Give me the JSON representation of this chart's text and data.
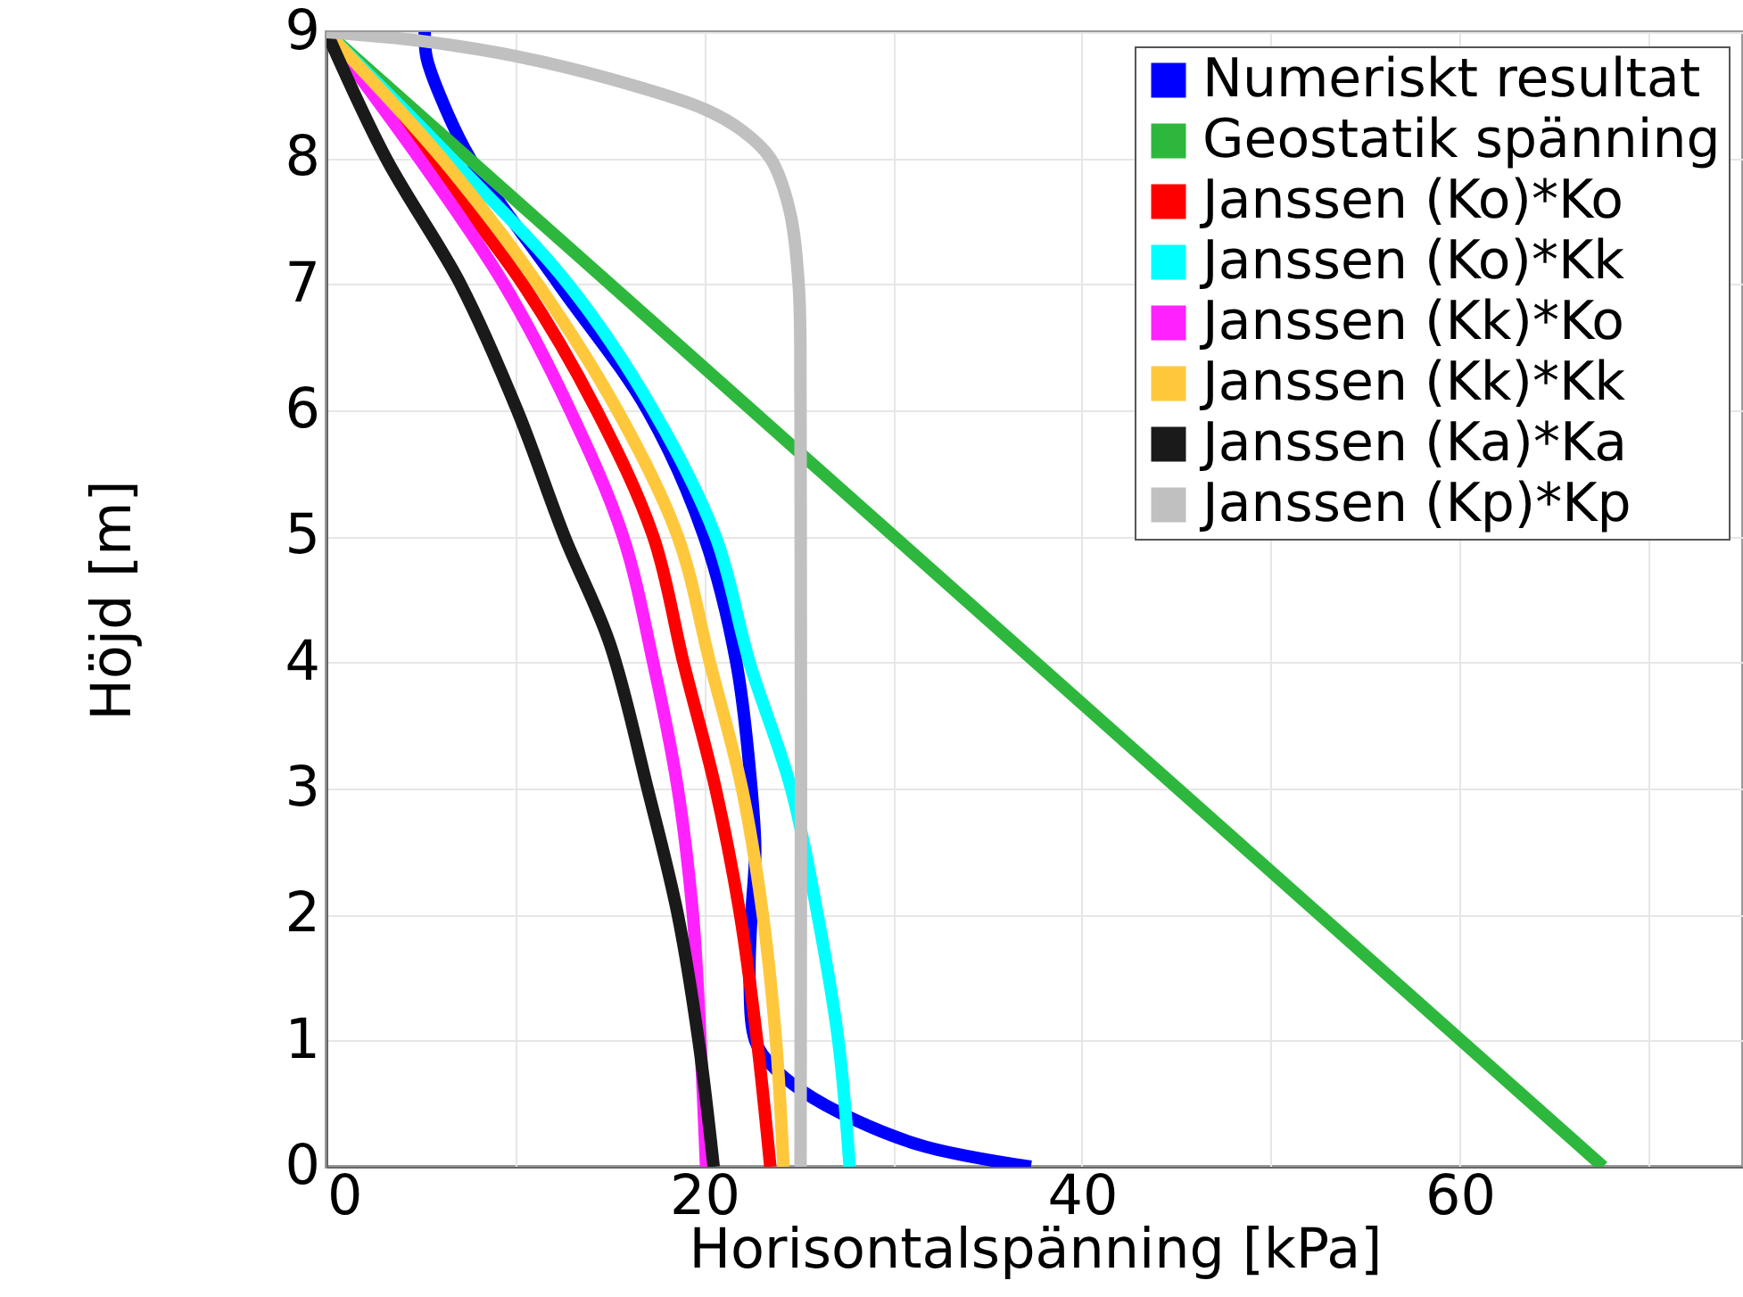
{
  "chart_data": {
    "type": "line",
    "xlabel": "Horisontalspänning [kPa]",
    "ylabel": "Höjd [m]",
    "xlim": [
      0,
      75
    ],
    "xticks": [
      0,
      {
        "value": 10,
        "label": null
      },
      20,
      {
        "value": 30,
        "label": null
      },
      40,
      {
        "value": 50,
        "label": null
      },
      60,
      {
        "value": 70,
        "label": null
      }
    ],
    "ylim": [
      0,
      9
    ],
    "yticks": [
      0,
      1,
      2,
      3,
      4,
      5,
      6,
      7,
      8,
      9
    ],
    "grid": true,
    "legend": "top right",
    "marker": "none",
    "line_style": "solid",
    "series": [
      {
        "name": "Numeriskt resultat",
        "color": "#0000ff",
        "x": [
          5.2,
          5.3,
          6.0,
          7.6,
          12.3,
          17,
          20,
          21.7,
          22.5,
          22.7,
          22.5,
          22.4,
          22.7,
          23.6,
          25.2,
          28,
          31.7,
          37.3
        ],
        "values": [
          9,
          8.8,
          8.5,
          8,
          7,
          6,
          5,
          4,
          3,
          2.5,
          2,
          1.5,
          1,
          0.8,
          0.6,
          0.37,
          0.16,
          0
        ]
      },
      {
        "name": "Geostatik spänning",
        "color": "#2db83d",
        "x": [
          0,
          67.6
        ],
        "values": [
          9,
          0
        ]
      },
      {
        "name": "Janssen (Ko)*Ko",
        "color": "#ff0000",
        "x": [
          0,
          5.35,
          10.4,
          14.3,
          17.3,
          18.9,
          20.6,
          21.9,
          22.8,
          23.5
        ],
        "values": [
          9,
          8,
          7,
          6,
          5,
          4,
          3,
          2,
          1,
          0
        ]
      },
      {
        "name": "Janssen (Ko)*Kk",
        "color": "#00ffff",
        "x": [
          0,
          6.6,
          12.8,
          17.3,
          20.6,
          22.4,
          24.6,
          26.0,
          27.1,
          27.7
        ],
        "values": [
          9,
          8,
          7,
          6,
          5,
          4,
          3,
          2,
          1,
          0
        ]
      },
      {
        "name": "Janssen (Kk)*Ko",
        "color": "#ff22ff",
        "x": [
          0,
          4.9,
          9.4,
          12.9,
          15.7,
          17.3,
          18.6,
          19.4,
          19.8,
          20.1
        ],
        "values": [
          9,
          8,
          7,
          6,
          5,
          4,
          3,
          2,
          1,
          0
        ]
      },
      {
        "name": "Janssen (Kk)*Kk",
        "color": "#ffc83c",
        "x": [
          0,
          6.1,
          11.2,
          15.4,
          18.6,
          20.3,
          22.0,
          23.1,
          23.8,
          24.2
        ],
        "values": [
          9,
          8,
          7,
          6,
          5,
          4,
          3,
          2,
          1,
          0
        ]
      },
      {
        "name": "Janssen (Ka)*Ka",
        "color": "#1a1a1a",
        "x": [
          0,
          3.15,
          7.1,
          10.1,
          12.6,
          15.0,
          17.0,
          18.6,
          19.7,
          20.5
        ],
        "values": [
          9,
          8,
          7,
          6,
          5,
          4.15,
          3,
          2,
          1,
          0
        ]
      },
      {
        "name": "Janssen (Kp)*Kp",
        "color": "#c0c0c0",
        "x": [
          0,
          5,
          10,
          15,
          20,
          22,
          23.5,
          24.5,
          25,
          25.1,
          25.1
        ],
        "values": [
          9,
          8.93,
          8.81,
          8.63,
          8.39,
          8.22,
          8.0,
          7.6,
          7,
          6,
          0
        ]
      }
    ]
  }
}
